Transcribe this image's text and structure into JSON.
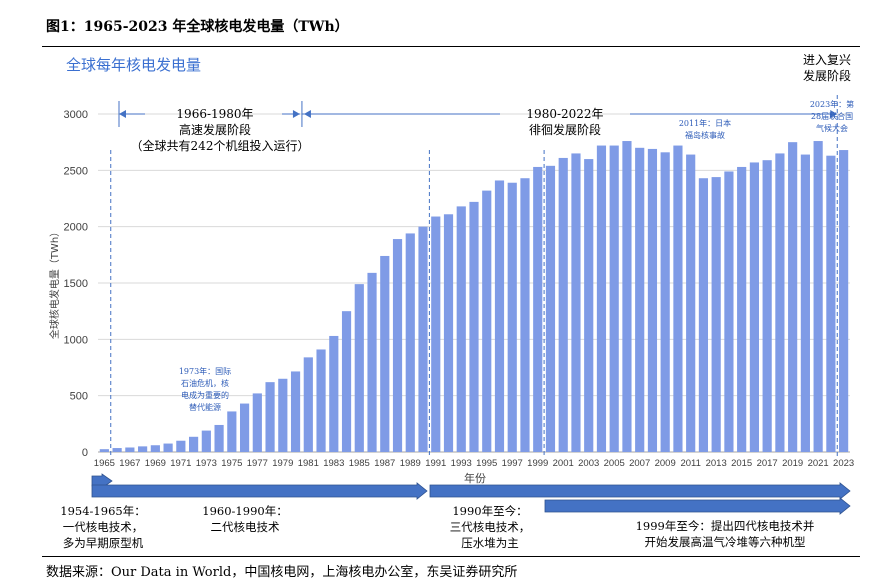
{
  "figure": {
    "title": "图1：1965-2023 年全球核电发电量（TWh）",
    "source": "数据来源：Our Data in World，中国核电网，上海核电办公室，东吴证券研究所"
  },
  "chart_data": {
    "type": "bar",
    "title": "全球每年核电发电量",
    "xlabel": "年份",
    "ylabel": "全球核电发电量（TWh）",
    "ylim": [
      0,
      3000
    ],
    "yticks": [
      0,
      500,
      1000,
      1500,
      2000,
      2500,
      3000
    ],
    "bar_color": "#7f9be6",
    "categories": [
      "1965",
      "1966",
      "1967",
      "1968",
      "1969",
      "1970",
      "1971",
      "1972",
      "1973",
      "1974",
      "1975",
      "1976",
      "1977",
      "1978",
      "1979",
      "1980",
      "1981",
      "1982",
      "1983",
      "1984",
      "1985",
      "1986",
      "1987",
      "1988",
      "1989",
      "1990",
      "1991",
      "1992",
      "1993",
      "1994",
      "1995",
      "1996",
      "1997",
      "1998",
      "1999",
      "2000",
      "2001",
      "2002",
      "2003",
      "2004",
      "2005",
      "2006",
      "2007",
      "2008",
      "2009",
      "2010",
      "2011",
      "2012",
      "2013",
      "2014",
      "2015",
      "2016",
      "2017",
      "2018",
      "2019",
      "2020",
      "2021",
      "2022",
      "2023"
    ],
    "values": [
      25,
      35,
      40,
      50,
      60,
      75,
      100,
      135,
      190,
      240,
      360,
      430,
      520,
      620,
      650,
      715,
      840,
      910,
      1030,
      1250,
      1490,
      1590,
      1740,
      1890,
      1940,
      2000,
      2090,
      2110,
      2180,
      2220,
      2320,
      2410,
      2390,
      2430,
      2530,
      2540,
      2610,
      2650,
      2600,
      2720,
      2720,
      2760,
      2700,
      2690,
      2660,
      2720,
      2640,
      2430,
      2440,
      2490,
      2530,
      2570,
      2590,
      2650,
      2750,
      2640,
      2760,
      2630,
      2680
    ],
    "tick_labels": [
      "1965",
      "1967",
      "1969",
      "1971",
      "1973",
      "1975",
      "1977",
      "1979",
      "1981",
      "1983",
      "1985",
      "1987",
      "1989",
      "1991",
      "1993",
      "1995",
      "1997",
      "1999",
      "2001",
      "2003",
      "2005",
      "2007",
      "2009",
      "2011",
      "2013",
      "2015",
      "2017",
      "2019",
      "2021",
      "2023"
    ]
  },
  "annotations": {
    "phase1_title": "1966-1980年",
    "phase1_sub": "高速发展阶段",
    "phase1_note": "（全球共有242个机组投入运行）",
    "phase2_title": "1980-2022年",
    "phase2_sub": "徘徊发展阶段",
    "phase3_line1": "进入复兴",
    "phase3_line2": "发展阶段",
    "note_1973": [
      "1973年：国际",
      "石油危机，核",
      "电成为重要的",
      "替代能源"
    ],
    "note_2011": [
      "2011年：日本",
      "福岛核事故"
    ],
    "note_2023": [
      "2023年：第",
      "28届联合国",
      "气候大会"
    ]
  },
  "tech": {
    "gen1": [
      "1954-1965年：",
      "一代核电技术，",
      "多为早期原型机"
    ],
    "gen2": [
      "1960-1990年：",
      "二代核电技术"
    ],
    "gen3": [
      "1990年至今：",
      "三代核电技术，",
      "压水堆为主"
    ],
    "gen4": [
      "1999年至今：提出四代核电技术并",
      "开始发展高温气冷堆等六种机型"
    ]
  }
}
